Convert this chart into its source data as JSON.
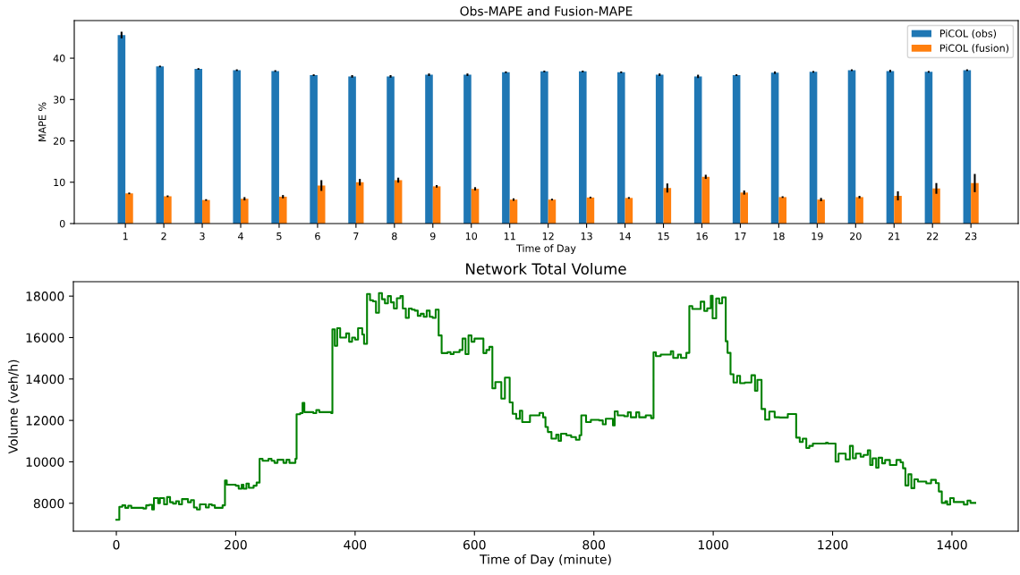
{
  "chart_data": [
    {
      "type": "bar",
      "title": "Obs-MAPE and Fusion-MAPE",
      "xlabel": "Time of Day",
      "ylabel": "MAPE %",
      "x": [
        1,
        2,
        3,
        4,
        5,
        6,
        7,
        8,
        9,
        10,
        11,
        12,
        13,
        14,
        15,
        16,
        17,
        18,
        19,
        20,
        21,
        22,
        23
      ],
      "xlim": [
        -0.33,
        24.23
      ],
      "xticks": [
        1,
        2,
        3,
        4,
        5,
        6,
        7,
        8,
        9,
        10,
        11,
        12,
        13,
        14,
        15,
        16,
        17,
        18,
        19,
        20,
        21,
        22,
        23
      ],
      "ylim": [
        0,
        49.1
      ],
      "yticks": [
        0,
        10,
        20,
        30,
        40
      ],
      "legend": "top right",
      "grid": false,
      "series": [
        {
          "name": "PiCOL (obs)",
          "color": "#1f77b4",
          "values": [
            45.6,
            38.0,
            37.4,
            37.1,
            36.9,
            35.9,
            35.6,
            35.6,
            36.0,
            36.0,
            36.6,
            36.8,
            36.8,
            36.6,
            36.0,
            35.6,
            35.9,
            36.5,
            36.7,
            37.1,
            36.9,
            36.7,
            37.1
          ],
          "errors": [
            0.8,
            0.2,
            0.2,
            0.2,
            0.2,
            0.2,
            0.3,
            0.3,
            0.3,
            0.3,
            0.2,
            0.2,
            0.2,
            0.2,
            0.3,
            0.4,
            0.2,
            0.3,
            0.2,
            0.2,
            0.3,
            0.2,
            0.2
          ]
        },
        {
          "name": "PiCOL (fusion)",
          "color": "#ff7f0e",
          "values": [
            7.3,
            6.6,
            5.7,
            6.0,
            6.5,
            9.2,
            10.0,
            10.5,
            9.0,
            8.4,
            5.8,
            5.8,
            6.3,
            6.2,
            8.6,
            11.3,
            7.5,
            6.4,
            5.8,
            6.4,
            6.7,
            8.5,
            9.8
          ],
          "errors": [
            0.2,
            0.2,
            0.2,
            0.4,
            0.4,
            1.3,
            0.8,
            0.6,
            0.3,
            0.4,
            0.3,
            0.2,
            0.2,
            0.2,
            1.1,
            0.5,
            0.5,
            0.2,
            0.4,
            0.3,
            1.1,
            1.3,
            2.2
          ]
        }
      ]
    },
    {
      "type": "step",
      "title": "Network Total Volume",
      "xlabel": "Time of Day (minute)",
      "ylabel": "Volume (veh/h)",
      "xlim": [
        -72,
        1511
      ],
      "xticks": [
        0,
        200,
        400,
        600,
        800,
        1000,
        1200,
        1400
      ],
      "ylim": [
        6653,
        18697
      ],
      "yticks": [
        8000,
        10000,
        12000,
        14000,
        16000,
        18000
      ],
      "grid": false,
      "legend": false,
      "line_style": "solid",
      "marker": "none",
      "x": [
        0,
        5,
        10,
        15,
        20,
        25,
        35,
        45,
        50,
        55,
        60,
        63,
        70,
        73,
        80,
        85,
        90,
        95,
        100,
        105,
        110,
        120,
        125,
        130,
        135,
        140,
        150,
        155,
        160,
        165,
        178,
        182,
        185,
        200,
        205,
        210,
        213,
        218,
        222,
        230,
        235,
        240,
        245,
        255,
        260,
        265,
        270,
        280,
        285,
        290,
        300,
        302,
        308,
        312,
        315,
        330,
        335,
        340,
        360,
        362,
        366,
        370,
        375,
        385,
        390,
        395,
        400,
        405,
        412,
        415,
        420,
        425,
        430,
        435,
        440,
        445,
        450,
        455,
        460,
        465,
        470,
        476,
        480,
        485,
        490,
        495,
        500,
        505,
        510,
        515,
        520,
        525,
        530,
        535,
        540,
        545,
        555,
        560,
        565,
        575,
        580,
        585,
        590,
        595,
        600,
        615,
        620,
        625,
        630,
        635,
        645,
        651,
        659,
        664,
        670,
        676,
        680,
        693,
        709,
        715,
        719,
        723,
        729,
        737,
        741,
        745,
        754,
        762,
        770,
        776,
        779,
        787,
        795,
        809,
        815,
        820,
        832,
        835,
        840,
        851,
        857,
        862,
        871,
        876,
        887,
        896,
        900,
        904,
        912,
        929,
        933,
        941,
        946,
        955,
        960,
        965,
        979,
        985,
        990,
        996,
        999,
        1005,
        1010,
        1015,
        1021,
        1024,
        1029,
        1034,
        1040,
        1045,
        1053,
        1064,
        1070,
        1074,
        1081,
        1087,
        1094,
        1103,
        1111,
        1125,
        1139,
        1145,
        1150,
        1156,
        1161,
        1167,
        1189,
        1192,
        1205,
        1210,
        1222,
        1229,
        1234,
        1239,
        1247,
        1252,
        1259,
        1263,
        1267,
        1273,
        1277,
        1283,
        1288,
        1296,
        1307,
        1314,
        1318,
        1322,
        1327,
        1332,
        1337,
        1343,
        1357,
        1365,
        1373,
        1378,
        1383,
        1389,
        1392,
        1397,
        1403,
        1420,
        1426,
        1431,
        1439
      ],
      "series": [
        {
          "color": "#008000",
          "values": [
            7200,
            7830,
            7900,
            7780,
            7880,
            7780,
            7780,
            7750,
            7900,
            7930,
            7700,
            8250,
            8000,
            8250,
            7950,
            8300,
            8050,
            7980,
            8100,
            7950,
            8200,
            8050,
            8150,
            7800,
            7700,
            7950,
            7800,
            7950,
            7900,
            7780,
            7900,
            9100,
            8900,
            8850,
            8700,
            8900,
            8700,
            8950,
            8750,
            8850,
            9000,
            10150,
            10050,
            10150,
            10050,
            9950,
            10100,
            9950,
            10100,
            9950,
            10150,
            12300,
            12350,
            12850,
            12400,
            12350,
            12500,
            12400,
            12350,
            16400,
            15600,
            16450,
            16000,
            16200,
            15800,
            16000,
            15900,
            16450,
            16150,
            15700,
            18100,
            17800,
            17750,
            17200,
            18150,
            17850,
            17650,
            18000,
            17700,
            17400,
            17900,
            18000,
            17400,
            16950,
            17400,
            17350,
            17300,
            17050,
            17150,
            17000,
            17300,
            17000,
            16950,
            17350,
            16100,
            15250,
            15300,
            15200,
            15300,
            15400,
            15950,
            15200,
            16100,
            15800,
            15950,
            15250,
            15400,
            15550,
            13550,
            13850,
            13050,
            14070,
            12870,
            12320,
            12080,
            12470,
            11920,
            12240,
            12360,
            12150,
            11680,
            11440,
            11120,
            11310,
            11010,
            11360,
            11280,
            11200,
            11070,
            11280,
            12240,
            11920,
            12030,
            12000,
            11810,
            12080,
            11760,
            12440,
            12240,
            12200,
            12390,
            12150,
            12390,
            12150,
            12240,
            12110,
            15290,
            15100,
            15180,
            15340,
            15020,
            15180,
            15020,
            15260,
            17520,
            17380,
            17730,
            17280,
            17410,
            18020,
            16930,
            17890,
            17650,
            17940,
            15820,
            15260,
            14230,
            13830,
            14150,
            13800,
            13830,
            14180,
            13430,
            13960,
            12550,
            12040,
            12430,
            12150,
            12140,
            12310,
            11170,
            10960,
            11120,
            10670,
            10770,
            10880,
            10930,
            10880,
            10010,
            10400,
            10120,
            10770,
            10170,
            10400,
            10250,
            10330,
            10560,
            9850,
            10170,
            9720,
            10200,
            9930,
            10090,
            9850,
            10090,
            9980,
            9690,
            8860,
            9400,
            8730,
            9160,
            9050,
            8960,
            9130,
            8970,
            8570,
            8020,
            8100,
            7940,
            8250,
            8060,
            7940,
            8130,
            8020,
            8020
          ]
        }
      ]
    }
  ]
}
